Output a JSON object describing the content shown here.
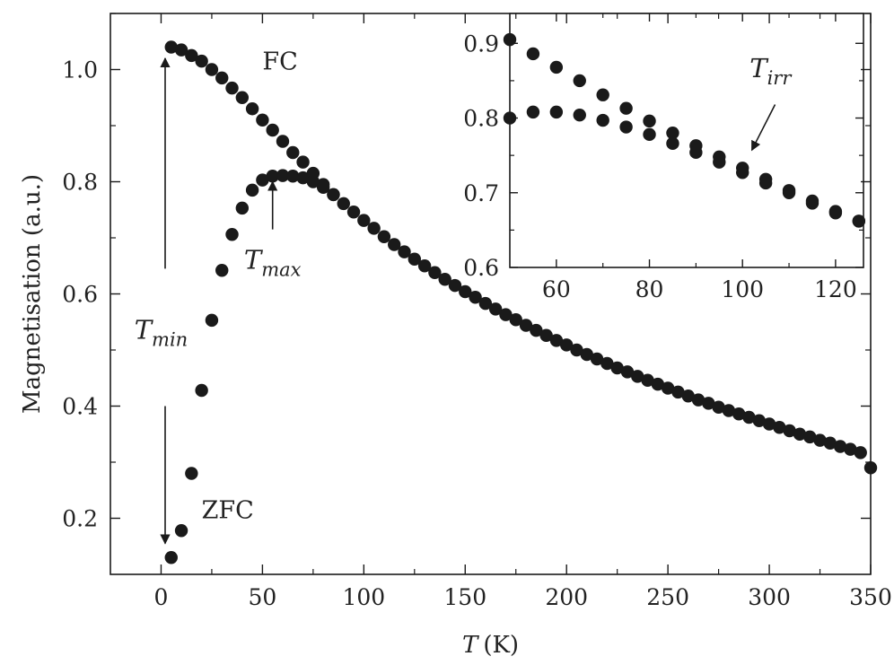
{
  "chart_data": [
    {
      "type": "scatter",
      "title": "",
      "xlabel": {
        "symbol": "T",
        "unit": "(K)"
      },
      "ylabel": "Magnetisation (a.u.)",
      "xlim": [
        -25,
        350
      ],
      "ylim": [
        0.1,
        1.1
      ],
      "x_ticks": [
        0,
        50,
        100,
        150,
        200,
        250,
        300,
        350
      ],
      "y_ticks": [
        0.2,
        0.4,
        0.6,
        0.8,
        1.0
      ],
      "x_tick_labels": [
        "0",
        "50",
        "100",
        "150",
        "200",
        "250",
        "300",
        "350"
      ],
      "y_tick_labels": [
        "0.2",
        "0.4",
        "0.6",
        "0.8",
        "1.0"
      ],
      "grid": false,
      "marker_color": "#1a1a1a",
      "series": [
        {
          "name": "FC",
          "x": [
            5,
            10,
            15,
            20,
            25,
            30,
            35,
            40,
            45,
            50,
            55,
            60,
            65,
            70,
            75,
            80,
            85,
            90,
            95,
            100,
            105,
            110,
            115,
            120,
            125,
            130,
            135,
            140,
            145,
            150,
            155,
            160,
            165,
            170,
            175,
            180,
            185,
            190,
            195,
            200,
            205,
            210,
            215,
            220,
            225,
            230,
            235,
            240,
            245,
            250,
            255,
            260,
            265,
            270,
            275,
            280,
            285,
            290,
            295,
            300,
            305,
            310,
            315,
            320,
            325,
            330,
            335,
            340,
            345,
            350
          ],
          "values": [
            1.04,
            1.035,
            1.025,
            1.015,
            1.0,
            0.985,
            0.967,
            0.95,
            0.93,
            0.91,
            0.892,
            0.872,
            0.852,
            0.835,
            0.815,
            0.795,
            0.777,
            0.761,
            0.746,
            0.731,
            0.717,
            0.702,
            0.688,
            0.675,
            0.662,
            0.65,
            0.638,
            0.626,
            0.615,
            0.604,
            0.594,
            0.583,
            0.573,
            0.563,
            0.554,
            0.544,
            0.535,
            0.526,
            0.517,
            0.509,
            0.5,
            0.492,
            0.484,
            0.476,
            0.468,
            0.461,
            0.453,
            0.446,
            0.439,
            0.432,
            0.425,
            0.418,
            0.411,
            0.405,
            0.398,
            0.392,
            0.386,
            0.38,
            0.374,
            0.368,
            0.362,
            0.356,
            0.35,
            0.345,
            0.339,
            0.334,
            0.328,
            0.323,
            0.317,
            0.29
          ]
        },
        {
          "name": "ZFC",
          "x": [
            5,
            10,
            15,
            20,
            25,
            30,
            35,
            40,
            45,
            50,
            55,
            60,
            65,
            70,
            75,
            80,
            85
          ],
          "values": [
            0.13,
            0.178,
            0.28,
            0.428,
            0.553,
            0.642,
            0.706,
            0.753,
            0.785,
            0.803,
            0.81,
            0.811,
            0.81,
            0.807,
            0.8,
            0.79,
            0.777
          ]
        }
      ],
      "annotations": [
        {
          "kind": "label",
          "text": "FC",
          "at": [
            50,
            1.0
          ]
        },
        {
          "kind": "label",
          "text": "ZFC",
          "at": [
            20,
            0.2
          ]
        },
        {
          "kind": "label",
          "symbol": "T",
          "sub": "max",
          "at": [
            55,
            0.645
          ]
        },
        {
          "kind": "label",
          "symbol": "T",
          "sub": "min",
          "at": [
            0,
            0.52
          ]
        },
        {
          "kind": "arrow",
          "from": [
            55,
            0.715
          ],
          "to": [
            55,
            0.8
          ]
        },
        {
          "kind": "arrow",
          "from": [
            2,
            0.645
          ],
          "to": [
            2,
            1.02
          ]
        },
        {
          "kind": "arrow",
          "from": [
            2,
            0.4
          ],
          "to": [
            2,
            0.155
          ]
        }
      ]
    },
    {
      "type": "scatter",
      "role": "inset",
      "title": "",
      "xlabel": "",
      "ylabel": "",
      "xlim": [
        50,
        126
      ],
      "ylim": [
        0.6,
        0.94
      ],
      "x_ticks": [
        60,
        80,
        100,
        120
      ],
      "y_ticks": [
        0.6,
        0.7,
        0.8,
        0.9
      ],
      "x_tick_labels": [
        "60",
        "80",
        "100",
        "120"
      ],
      "y_tick_labels": [
        "0.6",
        "0.7",
        "0.8",
        "0.9"
      ],
      "grid": false,
      "series": [
        {
          "name": "FC",
          "x": [
            50,
            55,
            60,
            65,
            70,
            75,
            80,
            85,
            90,
            95,
            100,
            105,
            110,
            115,
            120,
            125
          ],
          "values": [
            0.905,
            0.886,
            0.868,
            0.85,
            0.831,
            0.813,
            0.796,
            0.78,
            0.763,
            0.748,
            0.733,
            0.718,
            0.703,
            0.689,
            0.675,
            0.662
          ]
        },
        {
          "name": "ZFC",
          "x": [
            50,
            55,
            60,
            65,
            70,
            75,
            80,
            85,
            90,
            95,
            100,
            105,
            110,
            115,
            120,
            125
          ],
          "values": [
            0.8,
            0.808,
            0.808,
            0.804,
            0.797,
            0.788,
            0.778,
            0.766,
            0.754,
            0.741,
            0.727,
            0.713,
            0.7,
            0.686,
            0.673,
            0.662
          ]
        }
      ],
      "annotations": [
        {
          "kind": "label",
          "symbol": "T",
          "sub": "irr",
          "at": [
            106,
            0.855
          ]
        },
        {
          "kind": "arrow",
          "from": [
            107,
            0.818
          ],
          "to": [
            102,
            0.757
          ]
        }
      ]
    }
  ]
}
